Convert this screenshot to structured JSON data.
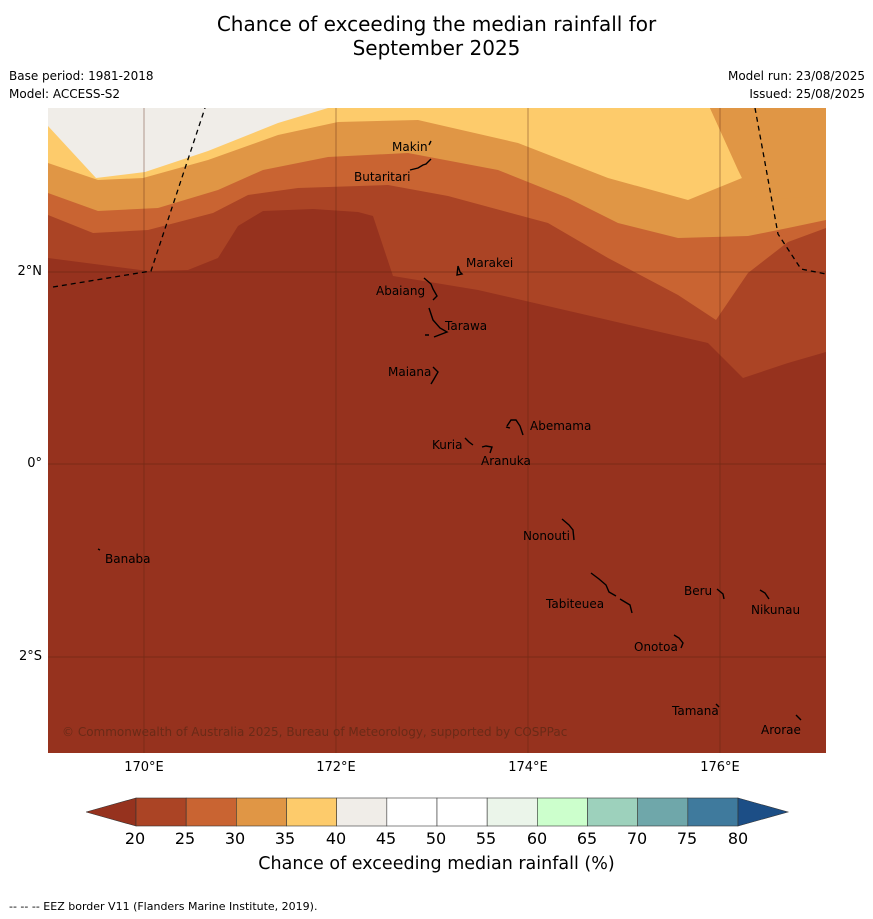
{
  "title_line1": "Chance of exceeding the median rainfall for",
  "title_line2": "September 2025",
  "base_period": "Base period: 1981-2018",
  "model": "Model: ACCESS-S2",
  "model_run": "Model run: 23/08/2025",
  "issued": "Issued: 25/08/2025",
  "x_ticks": [
    "170°E",
    "172°E",
    "174°E",
    "176°E"
  ],
  "y_ticks": [
    "2°N",
    "0°",
    "2°S"
  ],
  "places": {
    "makin": "Makin",
    "butaritari": "Butaritari",
    "marakei": "Marakei",
    "abaiang": "Abaiang",
    "tarawa": "Tarawa",
    "maiana": "Maiana",
    "abemama": "Abemama",
    "kuria": "Kuria",
    "aranuka": "Aranuka",
    "nonouti": "Nonouti",
    "banaba": "Banaba",
    "beru": "Beru",
    "nikunau": "Nikunau",
    "tabiteuea": "Tabiteuea",
    "onotoa": "Onotoa",
    "tamana": "Tamana",
    "arorae": "Arorae"
  },
  "copyright": "© Commonwealth of Australia 2025, Bureau of Meteorology, supported by COSPPac",
  "colorbar": {
    "labels": [
      "20",
      "25",
      "30",
      "35",
      "40",
      "45",
      "50",
      "55",
      "60",
      "65",
      "70",
      "75",
      "80"
    ],
    "colors": [
      "#ab4425",
      "#c96432",
      "#e09645",
      "#fdcb6b",
      "#f0ede8",
      "#ffffff",
      "#ffffff",
      "#ebf5ea",
      "#ccffcc",
      "#9dd1bc",
      "#6fa7aa",
      "#3f7a9d"
    ],
    "under_color": "#96321e",
    "over_color": "#1c4e86",
    "title": "Chance of exceeding median rainfall (%)"
  },
  "footnote": "--  --  -- EEZ border V11 (Flanders Marine Institute, 2019)."
}
